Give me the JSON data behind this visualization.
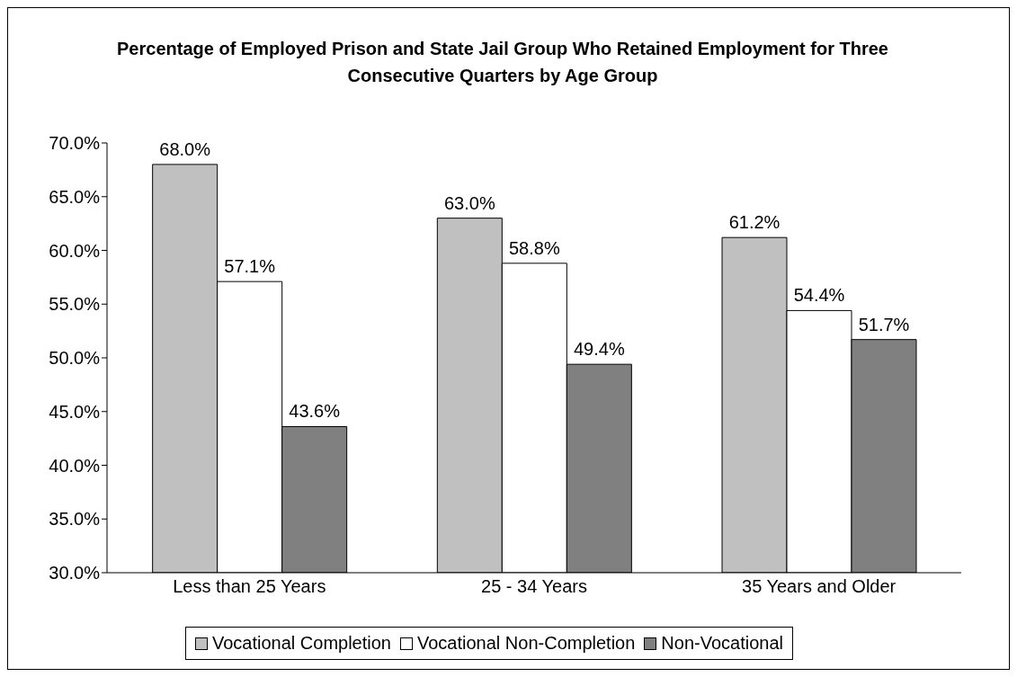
{
  "chart_data": {
    "type": "bar",
    "title": "Percentage of Employed Prison and State Jail Group Who Retained Employment for Three Consecutive Quarters by Age Group",
    "categories": [
      "Less than 25 Years",
      "25 - 34 Years",
      "35 Years and Older"
    ],
    "series": [
      {
        "name": "Vocational Completion",
        "color": "#c0c0c0",
        "values": [
          68.0,
          63.0,
          61.2
        ],
        "value_labels": [
          "68.0%",
          "63.0%",
          "61.2%"
        ]
      },
      {
        "name": "Vocational Non-Completion",
        "color": "#ffffff",
        "values": [
          57.1,
          58.8,
          54.4
        ],
        "value_labels": [
          "57.1%",
          "58.8%",
          "54.4%"
        ]
      },
      {
        "name": "Non-Vocational",
        "color": "#808080",
        "values": [
          43.6,
          49.4,
          51.7
        ],
        "value_labels": [
          "43.6%",
          "49.4%",
          "51.7%"
        ]
      }
    ],
    "ylim": [
      30,
      70
    ],
    "yticks": [
      {
        "value": 30,
        "label": "30.0%"
      },
      {
        "value": 35,
        "label": "35.0%"
      },
      {
        "value": 40,
        "label": "40.0%"
      },
      {
        "value": 45,
        "label": "45.0%"
      },
      {
        "value": 50,
        "label": "50.0%"
      },
      {
        "value": 55,
        "label": "55.0%"
      },
      {
        "value": 60,
        "label": "60.0%"
      },
      {
        "value": 65,
        "label": "65.0%"
      },
      {
        "value": 70,
        "label": "70.0%"
      }
    ],
    "grid": false,
    "legend": "bottom"
  }
}
